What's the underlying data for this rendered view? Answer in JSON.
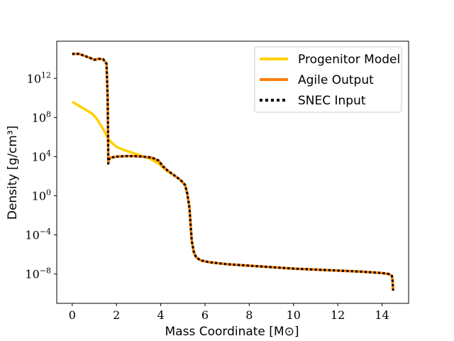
{
  "chart_data": {
    "type": "line",
    "title": "",
    "xlabel": "Mass Coordinate [M⊙]",
    "ylabel": "Density [g/cm³]",
    "xlim": [
      -0.7,
      15.2
    ],
    "ylog": true,
    "ylim_log10": [
      -11,
      15.8
    ],
    "x_ticks": [
      0,
      2,
      4,
      6,
      8,
      10,
      12,
      14
    ],
    "x_tick_labels": [
      "0",
      "2",
      "4",
      "6",
      "8",
      "10",
      "12",
      "14"
    ],
    "y_ticks_log10": [
      12,
      8,
      4,
      0,
      -4,
      -8
    ],
    "y_tick_labels": [
      {
        "base": "10",
        "exp": "12"
      },
      {
        "base": "10",
        "exp": "8"
      },
      {
        "base": "10",
        "exp": "4"
      },
      {
        "base": "10",
        "exp": "0"
      },
      {
        "base": "10",
        "exp": "−4"
      },
      {
        "base": "10",
        "exp": "−8"
      }
    ],
    "legend_position": "top-right",
    "series": [
      {
        "name": "Progenitor Model",
        "color": "#FFD000",
        "style": "solid",
        "x": [
          0,
          0.3,
          0.6,
          0.9,
          1.1,
          1.3,
          1.5,
          1.6,
          1.75,
          2.0,
          2.3,
          2.7,
          3.1,
          3.5,
          3.9,
          4.1,
          4.3,
          4.6,
          4.9,
          5.1,
          5.2,
          5.3,
          5.35,
          5.4,
          5.5,
          5.6,
          5.8,
          6.2,
          7,
          8,
          9,
          10,
          11,
          12,
          13,
          14,
          14.3,
          14.45,
          14.48,
          14.5
        ],
        "y_log10": [
          9.6,
          9.2,
          8.8,
          8.4,
          7.9,
          7.2,
          6.4,
          5.9,
          5.5,
          5.0,
          4.7,
          4.4,
          4.1,
          3.8,
          3.3,
          2.9,
          2.5,
          2.1,
          1.6,
          1.1,
          0.2,
          -1.3,
          -3.0,
          -4.6,
          -5.8,
          -6.3,
          -6.6,
          -6.8,
          -7.0,
          -7.15,
          -7.3,
          -7.45,
          -7.55,
          -7.65,
          -7.75,
          -7.9,
          -8.0,
          -8.2,
          -8.8,
          -9.7
        ]
      },
      {
        "name": "Agile Output",
        "color": "#FF7F0E",
        "style": "solid",
        "x": [
          0,
          0.3,
          0.5,
          0.8,
          1.0,
          1.2,
          1.4,
          1.55,
          1.6,
          1.62,
          1.63,
          1.65,
          1.75,
          2.0,
          2.4,
          2.8,
          3.2,
          3.6,
          3.9,
          4.1,
          4.3,
          4.6,
          4.9,
          5.1,
          5.2,
          5.3,
          5.35,
          5.4,
          5.5,
          5.6,
          5.8,
          6.2,
          7,
          8,
          9,
          10,
          11,
          12,
          13,
          14,
          14.3,
          14.45,
          14.48,
          14.5
        ],
        "y_log10": [
          14.5,
          14.5,
          14.35,
          14.1,
          13.9,
          14.0,
          13.95,
          13.5,
          10.0,
          6.0,
          3.3,
          3.7,
          3.9,
          4.0,
          4.05,
          4.05,
          4.0,
          3.9,
          3.6,
          3.0,
          2.6,
          2.1,
          1.6,
          1.1,
          0.2,
          -1.3,
          -3.0,
          -4.6,
          -5.8,
          -6.3,
          -6.6,
          -6.8,
          -7.0,
          -7.15,
          -7.3,
          -7.45,
          -7.55,
          -7.65,
          -7.75,
          -7.9,
          -8.0,
          -8.2,
          -8.8,
          -9.7
        ]
      },
      {
        "name": "SNEC Input",
        "color": "#000000",
        "style": "dotted",
        "x": [
          0,
          0.3,
          0.5,
          0.8,
          1.0,
          1.2,
          1.4,
          1.55,
          1.6,
          1.62,
          1.63,
          1.65,
          1.75,
          2.0,
          2.4,
          2.8,
          3.2,
          3.6,
          3.9,
          4.1,
          4.3,
          4.6,
          4.9,
          5.1,
          5.2,
          5.3,
          5.35,
          5.4,
          5.5,
          5.6,
          5.8,
          6.2,
          7,
          8,
          9,
          10,
          11,
          12,
          13,
          14,
          14.3,
          14.45,
          14.48,
          14.5
        ],
        "y_log10": [
          14.5,
          14.5,
          14.35,
          14.1,
          13.9,
          14.0,
          13.95,
          13.5,
          10.0,
          6.0,
          3.3,
          3.7,
          3.9,
          4.0,
          4.05,
          4.05,
          4.0,
          3.9,
          3.6,
          3.0,
          2.6,
          2.1,
          1.6,
          1.1,
          0.2,
          -1.3,
          -3.0,
          -4.6,
          -5.8,
          -6.3,
          -6.6,
          -6.8,
          -7.0,
          -7.15,
          -7.3,
          -7.45,
          -7.55,
          -7.65,
          -7.75,
          -7.9,
          -8.0,
          -8.2,
          -8.8,
          -9.7
        ]
      }
    ]
  }
}
